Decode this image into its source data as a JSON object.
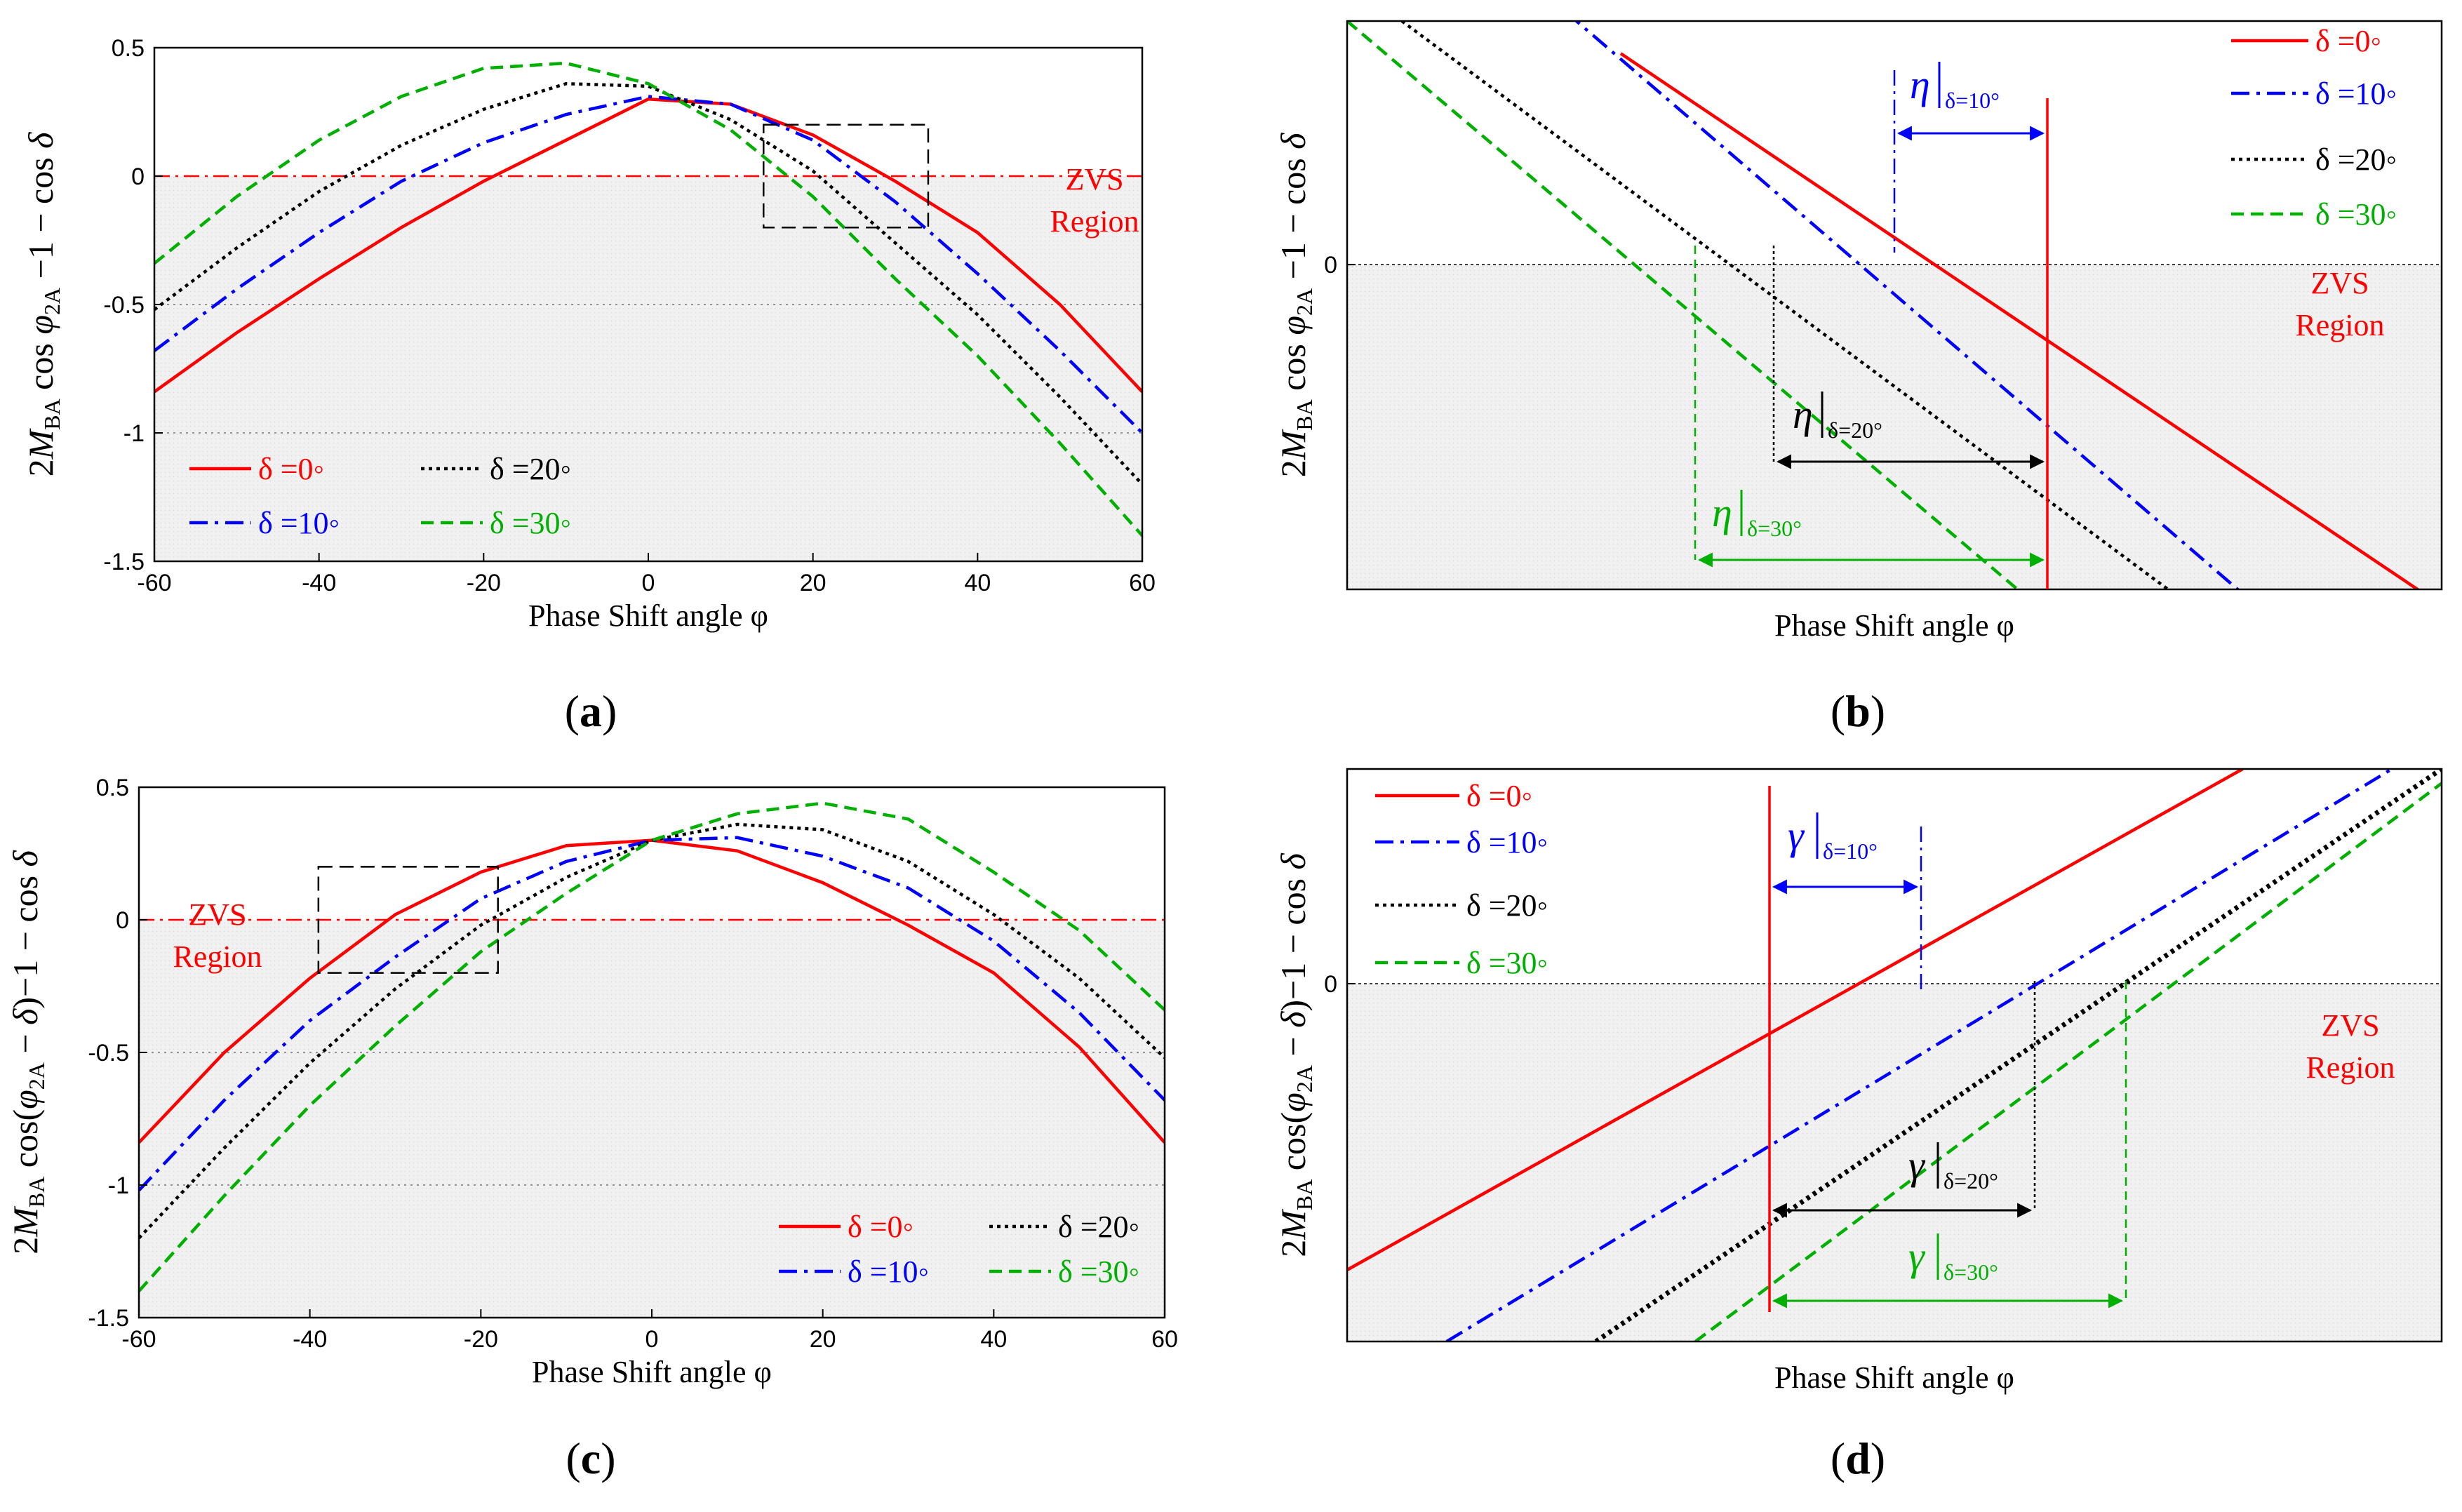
{
  "chart_data": [
    {
      "id": "a",
      "type": "line",
      "caption": "(a)",
      "xlabel": "Phase Shift angle φ",
      "ylabel": "2M_BA cos φ_2A − 1 − cos δ",
      "xlim": [
        -60,
        60
      ],
      "ylim": [
        -1.5,
        0.5
      ],
      "xticks": [
        "-60",
        "-40",
        "-20",
        "0",
        "20",
        "40",
        "60"
      ],
      "yticks": [
        "0.5",
        "0",
        "-0.5",
        "-1",
        "-1.5"
      ],
      "grid": "dotted at -0.5 and -1",
      "region_label": [
        "ZVS",
        "Region"
      ],
      "legend": "bottom-left",
      "series": [
        {
          "name": "δ =0◦",
          "color": "#ff0000",
          "dash": "solid",
          "x": [
            -60,
            -50,
            -40,
            -30,
            -20,
            -10,
            0,
            10,
            20,
            30,
            40,
            50,
            60
          ],
          "y": [
            -0.84,
            -0.61,
            -0.4,
            -0.2,
            -0.02,
            0.14,
            0.3,
            0.28,
            0.16,
            -0.02,
            -0.22,
            -0.5,
            -0.84
          ]
        },
        {
          "name": "δ =10◦",
          "color": "#0000ff",
          "dash": "dashdot",
          "x": [
            -60,
            -50,
            -40,
            -30,
            -20,
            -10,
            0,
            10,
            20,
            30,
            40,
            50,
            60
          ],
          "y": [
            -0.68,
            -0.44,
            -0.22,
            -0.02,
            0.13,
            0.24,
            0.31,
            0.28,
            0.14,
            -0.1,
            -0.38,
            -0.68,
            -1.0
          ]
        },
        {
          "name": "δ =20◦",
          "color": "#000000",
          "dash": "dotted",
          "x": [
            -60,
            -50,
            -40,
            -30,
            -20,
            -10,
            0,
            10,
            20,
            30,
            40,
            50,
            60
          ],
          "y": [
            -0.52,
            -0.28,
            -0.06,
            0.12,
            0.26,
            0.36,
            0.35,
            0.22,
            0.02,
            -0.26,
            -0.54,
            -0.86,
            -1.2
          ]
        },
        {
          "name": "δ =30◦",
          "color": "#00b000",
          "dash": "dashed",
          "x": [
            -60,
            -50,
            -40,
            -30,
            -20,
            -10,
            0,
            10,
            20,
            30,
            40,
            50,
            60
          ],
          "y": [
            -0.34,
            -0.08,
            0.14,
            0.31,
            0.42,
            0.44,
            0.36,
            0.18,
            -0.08,
            -0.4,
            -0.7,
            -1.04,
            -1.4
          ]
        }
      ],
      "zoom_box": {
        "x": [
          14,
          34
        ],
        "y": [
          -0.2,
          0.2
        ]
      }
    },
    {
      "id": "b",
      "type": "line",
      "caption": "(b)",
      "xlabel": "Phase Shift angle φ",
      "ylabel": "2M_BA cos φ_2A − 1 − cos δ",
      "xlim": [
        15,
        35
      ],
      "ylim": [
        -0.2,
        0.15
      ],
      "yticks": [
        "0"
      ],
      "region_label": [
        "ZVS",
        "Region"
      ],
      "legend": "top-right",
      "series": [
        {
          "name": "δ =0◦",
          "color": "#ff0000",
          "dash": "solid",
          "x": [
            20,
            35
          ],
          "y": [
            0.13,
            -0.21
          ]
        },
        {
          "name": "δ =10◦",
          "color": "#0000ff",
          "dash": "dashdot",
          "x": [
            18.5,
            33
          ],
          "y": [
            0.17,
            -0.25
          ]
        },
        {
          "name": "δ =20◦",
          "color": "#000000",
          "dash": "dotted",
          "x": [
            16,
            32
          ],
          "y": [
            0.15,
            -0.25
          ]
        },
        {
          "name": "δ =30◦",
          "color": "#00b000",
          "dash": "dashed",
          "x": [
            15,
            29
          ],
          "y": [
            0.15,
            -0.25
          ]
        }
      ],
      "annotations": [
        {
          "symbol": "η",
          "subscript": "δ=10°",
          "color": "#0000ff"
        },
        {
          "symbol": "η",
          "subscript": "δ=20°",
          "color": "#000000"
        },
        {
          "symbol": "η",
          "subscript": "δ=30°",
          "color": "#00b000"
        }
      ]
    },
    {
      "id": "c",
      "type": "line",
      "caption": "(c)",
      "xlabel": "Phase Shift angle φ",
      "ylabel": "2M_BA cos(φ_2A − δ) − 1 − cos δ",
      "xlim": [
        -60,
        60
      ],
      "ylim": [
        -1.5,
        0.5
      ],
      "xticks": [
        "-60",
        "-40",
        "-20",
        "0",
        "20",
        "40",
        "60"
      ],
      "yticks": [
        "0.5",
        "0",
        "-0.5",
        "-1",
        "-1.5"
      ],
      "grid": "dotted at -0.5 and -1",
      "region_label": [
        "ZVS",
        "Region"
      ],
      "legend": "bottom-right",
      "series": [
        {
          "name": "δ =0◦",
          "color": "#ff0000",
          "dash": "solid",
          "x": [
            -60,
            -50,
            -40,
            -30,
            -20,
            -10,
            0,
            10,
            20,
            30,
            40,
            50,
            60
          ],
          "y": [
            -0.84,
            -0.5,
            -0.22,
            0.02,
            0.18,
            0.28,
            0.3,
            0.26,
            0.14,
            -0.02,
            -0.2,
            -0.48,
            -0.84
          ]
        },
        {
          "name": "δ =10◦",
          "color": "#0000ff",
          "dash": "dashdot",
          "x": [
            -60,
            -50,
            -40,
            -30,
            -20,
            -10,
            0,
            10,
            20,
            30,
            40,
            50,
            60
          ],
          "y": [
            -1.02,
            -0.68,
            -0.38,
            -0.14,
            0.08,
            0.22,
            0.3,
            0.31,
            0.24,
            0.12,
            -0.08,
            -0.35,
            -0.68
          ]
        },
        {
          "name": "δ =20◦",
          "color": "#000000",
          "dash": "dotted",
          "x": [
            -60,
            -50,
            -40,
            -30,
            -20,
            -10,
            0,
            10,
            20,
            30,
            40,
            50,
            60
          ],
          "y": [
            -1.2,
            -0.86,
            -0.54,
            -0.26,
            -0.02,
            0.16,
            0.3,
            0.36,
            0.34,
            0.22,
            0.02,
            -0.22,
            -0.52
          ]
        },
        {
          "name": "δ =30◦",
          "color": "#00b000",
          "dash": "dashed",
          "x": [
            -60,
            -50,
            -40,
            -30,
            -20,
            -10,
            0,
            10,
            20,
            30,
            40,
            50,
            60
          ],
          "y": [
            -1.4,
            -1.04,
            -0.7,
            -0.4,
            -0.12,
            0.1,
            0.3,
            0.4,
            0.44,
            0.38,
            0.18,
            -0.04,
            -0.34
          ]
        }
      ],
      "zoom_box": {
        "x": [
          -39,
          -18
        ],
        "y": [
          -0.2,
          0.2
        ]
      }
    },
    {
      "id": "d",
      "type": "line",
      "caption": "(d)",
      "xlabel": "Phase Shift angle φ",
      "ylabel": "2M_BA cos(φ_2A − δ) − 1 − cos δ",
      "xlim": [
        -40,
        -18
      ],
      "ylim": [
        -0.25,
        0.15
      ],
      "yticks": [
        "0"
      ],
      "region_label": [
        "ZVS",
        "Region"
      ],
      "legend": "top-left",
      "series": [
        {
          "name": "δ =0◦",
          "color": "#ff0000",
          "dash": "solid",
          "x": [
            -40,
            -22
          ],
          "y": [
            -0.2,
            0.15
          ]
        },
        {
          "name": "δ =10◦",
          "color": "#0000ff",
          "dash": "dashdot",
          "x": [
            -38,
            -19
          ],
          "y": [
            -0.25,
            0.15
          ]
        },
        {
          "name": "δ =20◦",
          "color": "#000000",
          "dash": "dotted",
          "x": [
            -35,
            -18
          ],
          "y": [
            -0.25,
            0.15
          ]
        },
        {
          "name": "δ =30◦",
          "color": "#00b000",
          "dash": "dashed",
          "x": [
            -33,
            -18
          ],
          "y": [
            -0.25,
            0.14
          ]
        }
      ],
      "annotations": [
        {
          "symbol": "γ",
          "subscript": "δ=10°",
          "color": "#0000ff"
        },
        {
          "symbol": "γ",
          "subscript": "δ=20°",
          "color": "#000000"
        },
        {
          "symbol": "γ",
          "subscript": "δ=30°",
          "color": "#00b000"
        }
      ]
    }
  ]
}
